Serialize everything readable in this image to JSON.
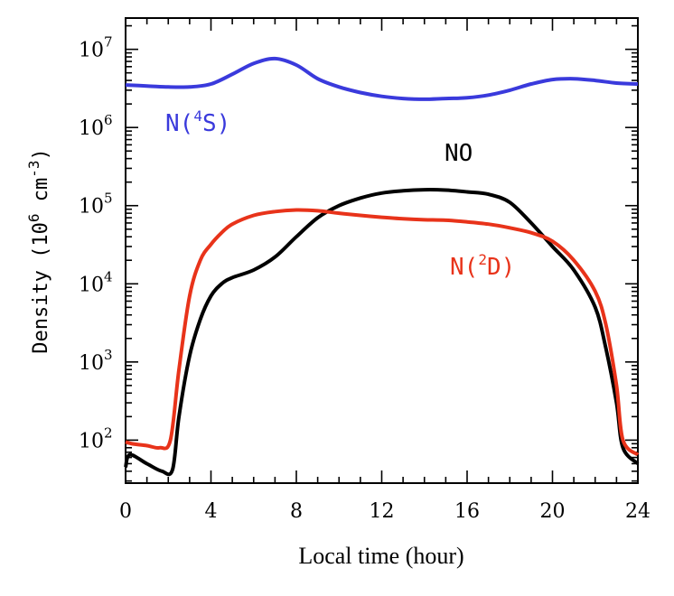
{
  "chart_data": {
    "type": "line",
    "xlabel": "Local time (hour)",
    "ylabel": {
      "prefix": "Density (10",
      "exp1": "6",
      "mid": " cm",
      "exp2": "-3",
      "suffix": ")"
    },
    "xlim": [
      0,
      24
    ],
    "ylim_log10": [
      1.45,
      7.4
    ],
    "x_ticks": [
      "0",
      "4",
      "8",
      "12",
      "16",
      "20",
      "24"
    ],
    "y_ticks": [
      {
        "base": "10",
        "exp": "2"
      },
      {
        "base": "10",
        "exp": "3"
      },
      {
        "base": "10",
        "exp": "4"
      },
      {
        "base": "10",
        "exp": "5"
      },
      {
        "base": "10",
        "exp": "6"
      },
      {
        "base": "10",
        "exp": "7"
      }
    ],
    "series": [
      {
        "name": "N(4S)",
        "label": {
          "prefix": "N(",
          "sup": "4",
          "suffix": "S)"
        },
        "color": "#3a3adc",
        "x": [
          0,
          1,
          2,
          3,
          4,
          5,
          6,
          7,
          8,
          9,
          10,
          11,
          12,
          13,
          14,
          15,
          16,
          17,
          18,
          19,
          20,
          21,
          22,
          23,
          24
        ],
        "y": [
          3500000.0,
          3400000.0,
          3300000.0,
          3300000.0,
          3600000.0,
          4800000.0,
          6600000.0,
          7600000.0,
          6300000.0,
          4200000.0,
          3300000.0,
          2800000.0,
          2500000.0,
          2350000.0,
          2300000.0,
          2350000.0,
          2400000.0,
          2600000.0,
          3000000.0,
          3600000.0,
          4100000.0,
          4200000.0,
          4000000.0,
          3700000.0,
          3600000.0
        ]
      },
      {
        "name": "NO",
        "label": {
          "prefix": "NO",
          "sup": "",
          "suffix": ""
        },
        "color": "#000000",
        "x": [
          0,
          0.2,
          1,
          1.7,
          2.2,
          2.5,
          3,
          3.5,
          4,
          4.5,
          5,
          6,
          7,
          8,
          9,
          10,
          11,
          12,
          13,
          14,
          15,
          16,
          17,
          18,
          19,
          20,
          21,
          22,
          22.5,
          23,
          23.3,
          24
        ],
        "y": [
          45,
          65,
          50,
          40,
          42,
          200,
          1200,
          3500,
          7000,
          10000,
          12000,
          15000,
          22000,
          40000,
          70000,
          100000,
          125000,
          145000,
          155000,
          160000,
          158000,
          150000,
          140000,
          110000,
          60000,
          30000,
          15000,
          5000,
          1500,
          300,
          80,
          50
        ]
      },
      {
        "name": "N(2D)",
        "label": {
          "prefix": "N(",
          "sup": "2",
          "suffix": "D)"
        },
        "color": "#e8331a",
        "x": [
          0,
          0.3,
          1,
          1.6,
          2.1,
          2.5,
          3,
          3.5,
          4,
          4.5,
          5,
          6,
          7,
          8,
          9,
          10,
          11,
          12,
          13,
          14,
          15,
          16,
          17,
          18,
          19,
          20,
          21,
          22,
          22.5,
          23,
          23.3,
          24
        ],
        "y": [
          95,
          90,
          85,
          80,
          100,
          800,
          7000,
          20000,
          32000,
          45000,
          58000,
          75000,
          84000,
          88000,
          86000,
          80000,
          75000,
          71000,
          68000,
          66000,
          65000,
          62000,
          58000,
          52000,
          45000,
          35000,
          20000,
          8000,
          3000,
          500,
          100,
          65
        ]
      }
    ]
  }
}
